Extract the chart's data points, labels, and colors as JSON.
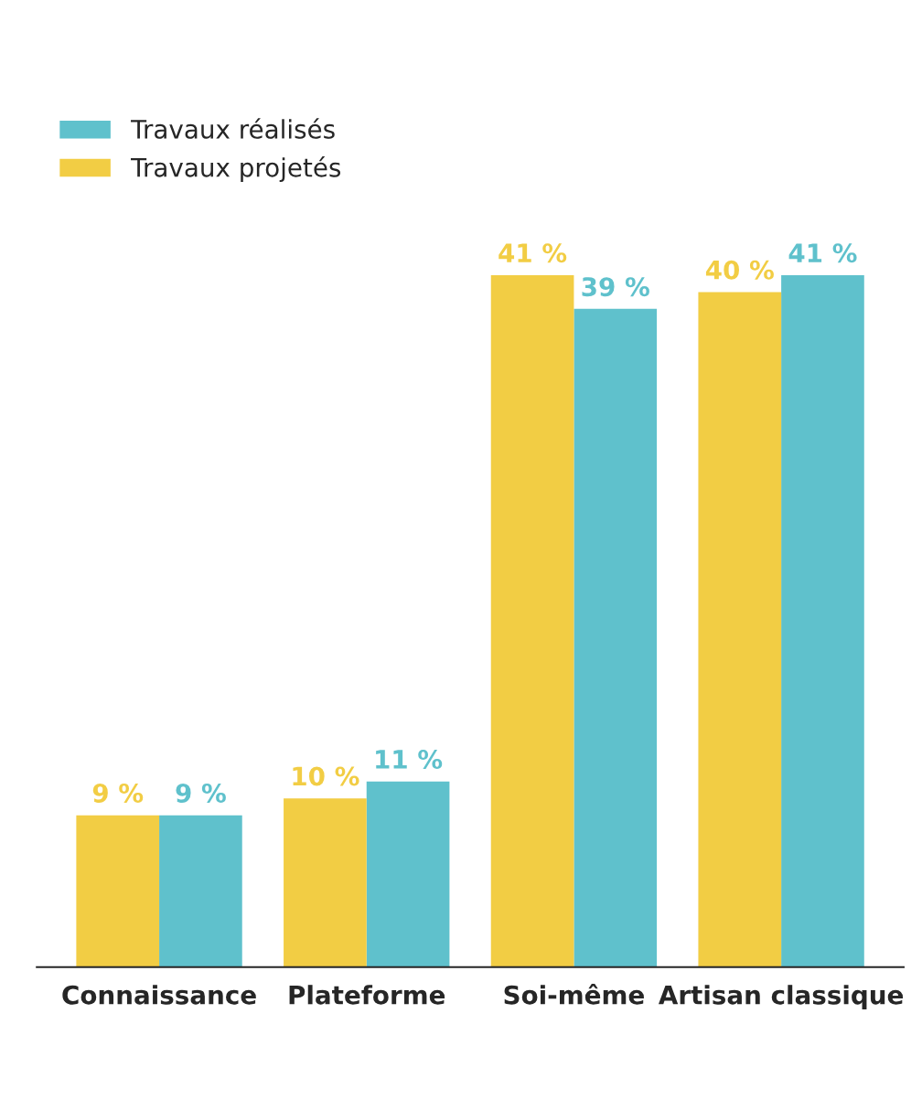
{
  "chart_data": {
    "type": "bar",
    "categories": [
      "Connaissance",
      "Plateforme",
      "Soi-même",
      "Artisan classique"
    ],
    "series": [
      {
        "name": "Travaux réalisés",
        "color": "#5fc1cc",
        "values": [
          9,
          11,
          39,
          41
        ],
        "value_labels": [
          "9 %",
          "11 %",
          "39 %",
          "41 %"
        ]
      },
      {
        "name": "Travaux projetés",
        "color": "#f2cd44",
        "values": [
          9,
          10,
          41,
          40
        ],
        "value_labels": [
          "9 %",
          "10 %",
          "41 %",
          "40 %"
        ]
      }
    ],
    "legend": "top left",
    "grid": false
  }
}
